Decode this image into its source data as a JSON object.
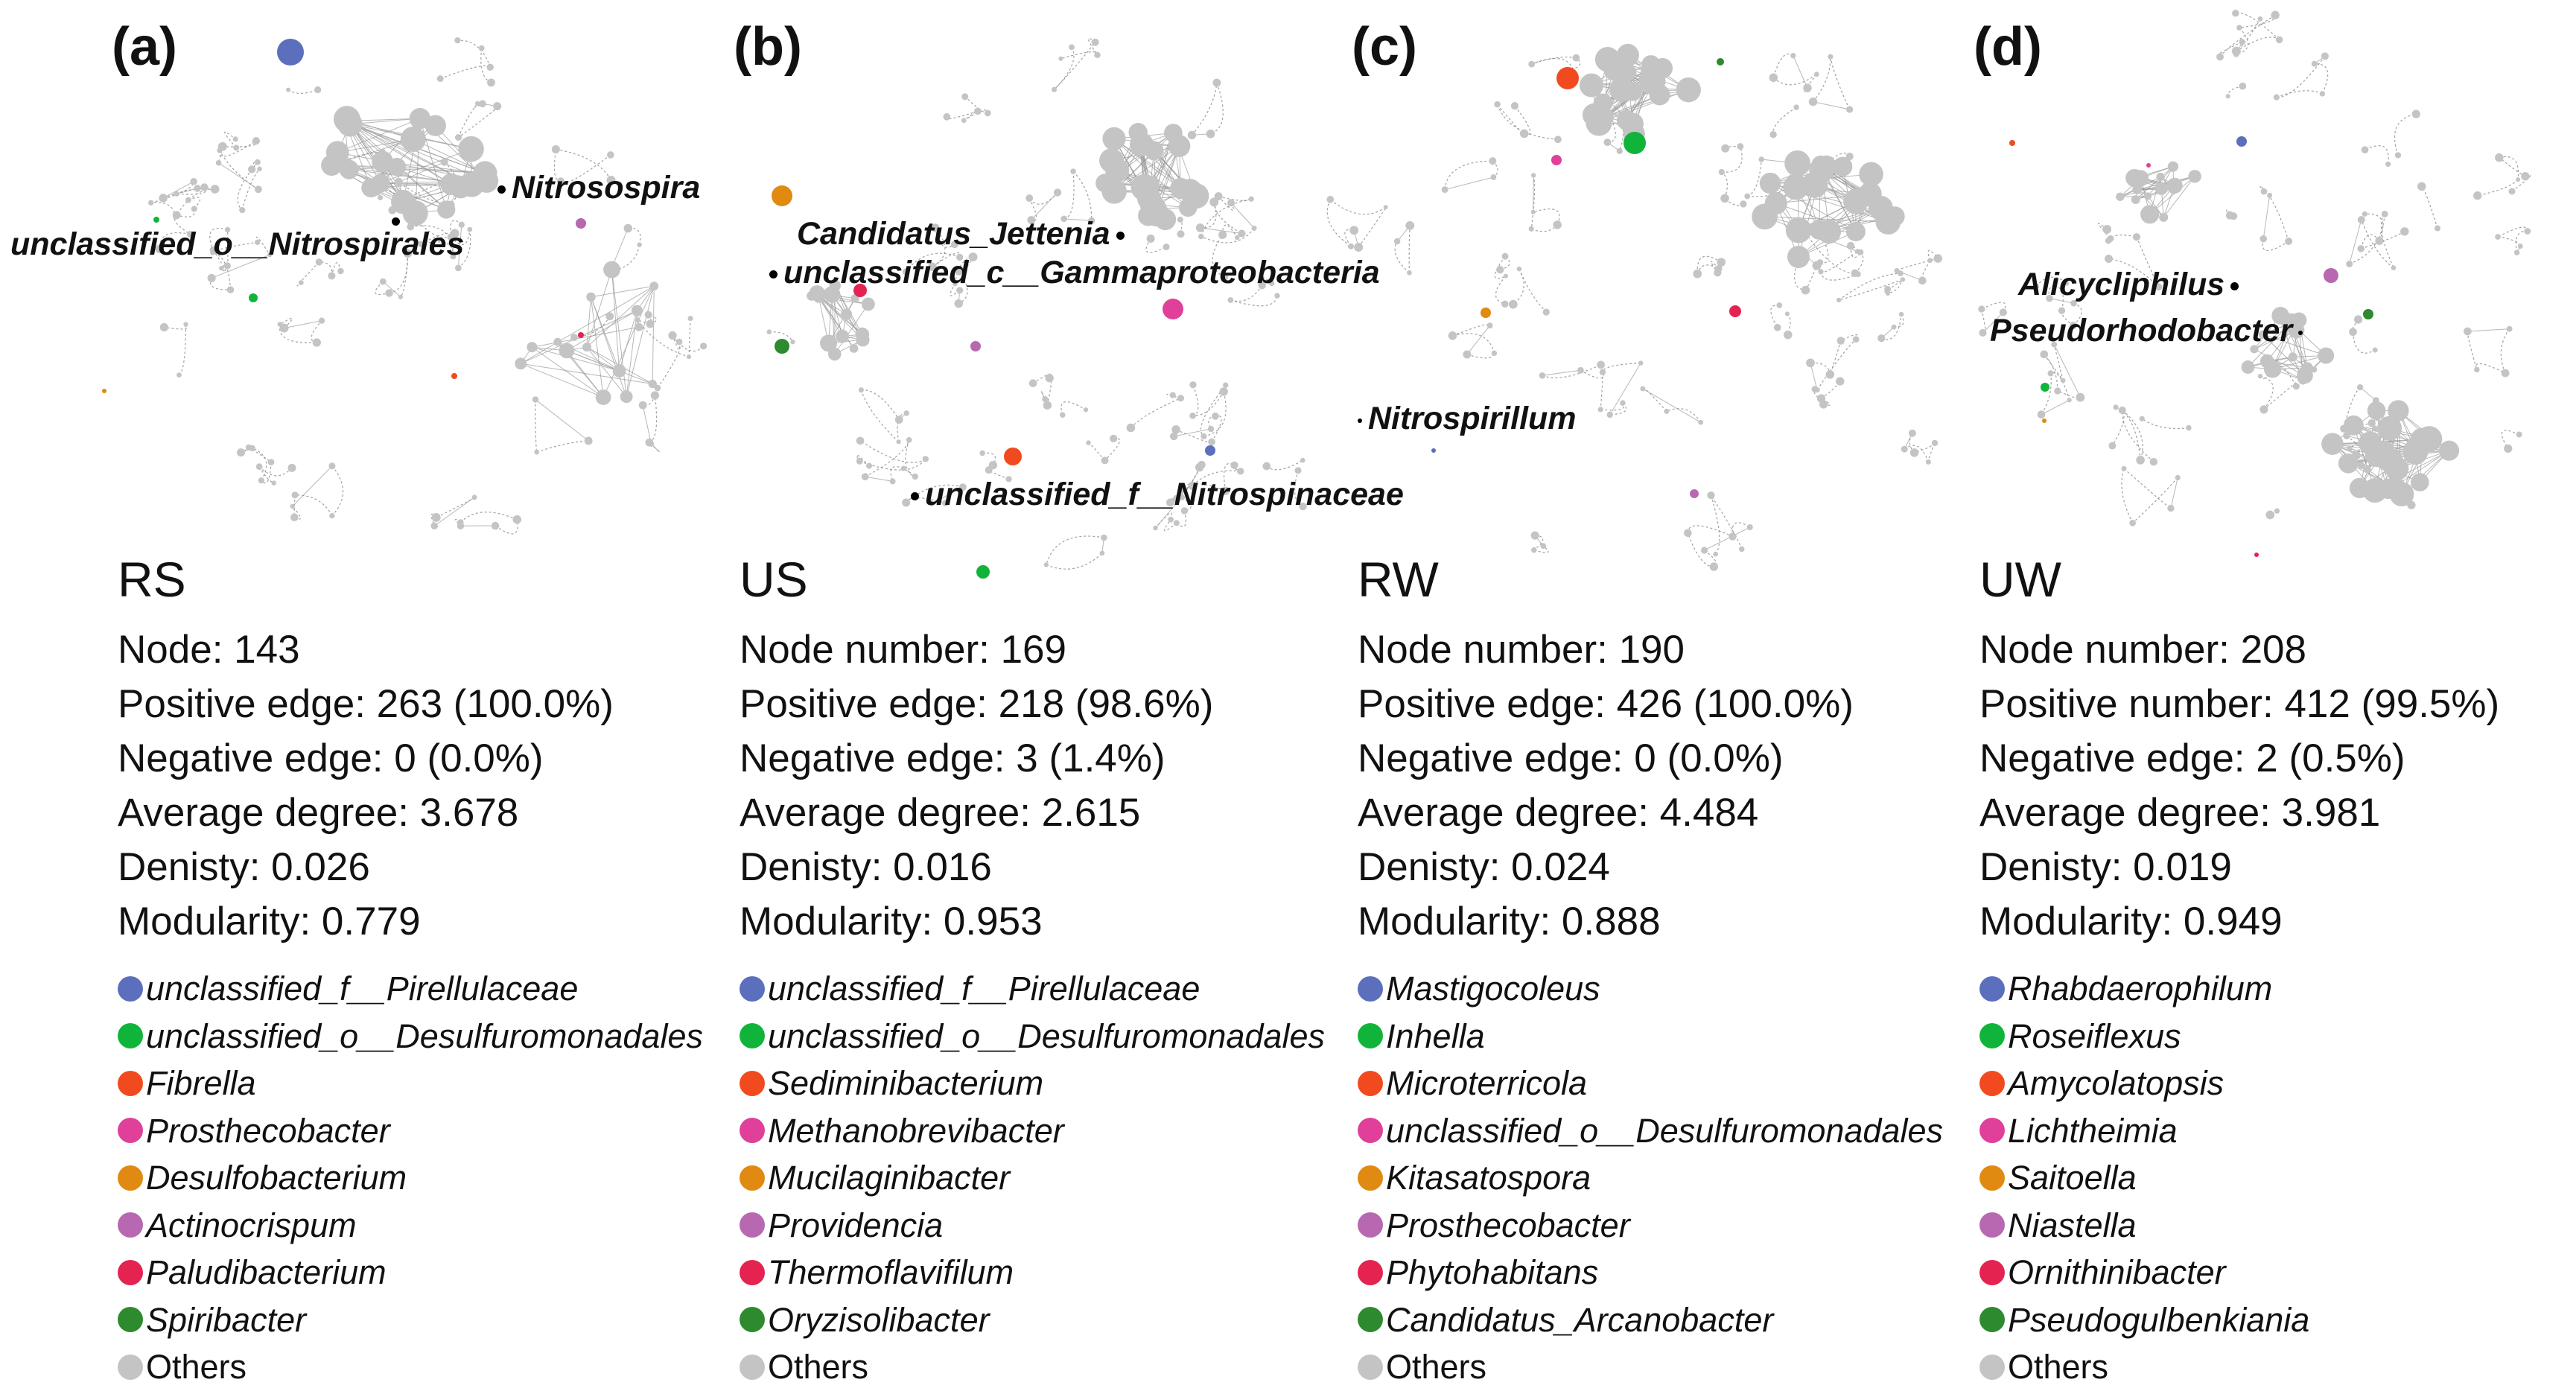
{
  "colors": {
    "blue": "#5b6fbd",
    "green": "#11b43a",
    "orange_red": "#f24a1f",
    "pink": "#e0409a",
    "orange": "#e08a12",
    "violet": "#b868b0",
    "crimson": "#e52350",
    "dark_green": "#2e8a2e",
    "gray": "#c4c4c4"
  },
  "panels": [
    {
      "letter": "(a)",
      "name": "RS",
      "stats": [
        "Node: 143",
        "Positive edge: 263 (100.0%)",
        "Negative edge: 0 (0.0%)",
        "Average degree: 3.678",
        "Denisty: 0.026",
        "Modularity: 0.779"
      ],
      "callouts": [
        "Nitrosospira",
        "unclassified_o__Nitrospirales"
      ],
      "legend": [
        "unclassified_f__Pirellulaceae",
        "unclassified_o__Desulfuromonadales",
        "Fibrella",
        "Prosthecobacter",
        "Desulfobacterium",
        "Actinocrispum",
        "Paludibacterium",
        "Spiribacter",
        "Others"
      ]
    },
    {
      "letter": "(b)",
      "name": "US",
      "stats": [
        "Node number: 169",
        "Positive edge: 218 (98.6%)",
        "Negative edge: 3 (1.4%)",
        "Average degree: 2.615",
        "Denisty: 0.016",
        "Modularity: 0.953"
      ],
      "callouts": [
        "Candidatus_Jettenia",
        "unclassified_c__Gammaproteobacteria",
        "unclassified_f__Nitrospinaceae"
      ],
      "legend": [
        "unclassified_f__Pirellulaceae",
        "unclassified_o__Desulfuromonadales",
        "Sediminibacterium",
        "Methanobrevibacter",
        "Mucilaginibacter",
        "Providencia",
        "Thermoflavifilum",
        "Oryzisolibacter",
        "Others"
      ]
    },
    {
      "letter": "(c)",
      "name": "RW",
      "stats": [
        "Node number: 190",
        "Positive edge: 426 (100.0%)",
        "Negative edge: 0 (0.0%)",
        "Average degree: 4.484",
        "Denisty: 0.024",
        "Modularity: 0.888"
      ],
      "callouts": [
        "Nitrospirillum"
      ],
      "legend": [
        "Mastigocoleus",
        "Inhella",
        "Microterricola",
        "unclassified_o__Desulfuromonadales",
        "Kitasatospora",
        "Prosthecobacter",
        "Phytohabitans",
        "Candidatus_Arcanobacter",
        "Others"
      ]
    },
    {
      "letter": "(d)",
      "name": "UW",
      "stats": [
        "Node number: 208",
        "Positive number: 412 (99.5%)",
        "Negative edge: 2 (0.5%)",
        "Average degree: 3.981",
        "Denisty: 0.019",
        "Modularity: 0.949"
      ],
      "callouts": [
        "Alicycliphilus",
        "Pseudorhodobacter"
      ],
      "legend": [
        "Rhabdaerophilum",
        "Roseiflexus",
        "Amycolatopsis",
        "Lichtheimia",
        "Saitoella",
        "Niastella",
        "Ornithinibacter",
        "Pseudogulbenkiania",
        "Others"
      ]
    }
  ]
}
